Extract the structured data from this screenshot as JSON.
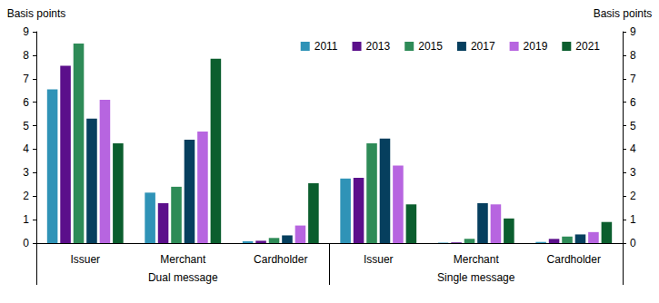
{
  "chart_data": {
    "type": "bar",
    "categories": [
      "Issuer",
      "Merchant",
      "Cardholder",
      "Issuer",
      "Merchant",
      "Cardholder"
    ],
    "category_groups": [
      "Dual message",
      "Dual message",
      "Dual message",
      "Single message",
      "Single message",
      "Single message"
    ],
    "ylabel": "Basis points",
    "y2label": "Basis points",
    "ylim": [
      0,
      9
    ],
    "yticks": [
      0,
      1,
      2,
      3,
      4,
      5,
      6,
      7,
      8,
      9
    ],
    "y2lim": [
      0,
      9
    ],
    "y2ticks": [
      0,
      1,
      2,
      3,
      4,
      5,
      6,
      7,
      8,
      9
    ],
    "grid": false,
    "legend": "upper right",
    "series": [
      {
        "name": "2011",
        "color": "#2f93b7",
        "values": [
          6.55,
          2.15,
          0.08,
          2.75,
          0.02,
          0.05
        ]
      },
      {
        "name": "2013",
        "color": "#5b0f8b",
        "values": [
          7.55,
          1.7,
          0.1,
          2.78,
          0.03,
          0.18
        ]
      },
      {
        "name": "2015",
        "color": "#2e8b57",
        "values": [
          8.5,
          2.4,
          0.22,
          4.25,
          0.18,
          0.28
        ]
      },
      {
        "name": "2017",
        "color": "#063f5e",
        "values": [
          5.3,
          4.4,
          0.33,
          4.45,
          1.7,
          0.37
        ]
      },
      {
        "name": "2019",
        "color": "#b765e0",
        "values": [
          6.1,
          4.75,
          0.75,
          3.3,
          1.65,
          0.47
        ]
      },
      {
        "name": "2021",
        "color": "#0b5e2e",
        "values": [
          4.25,
          7.85,
          2.55,
          1.65,
          1.05,
          0.9
        ]
      }
    ]
  }
}
